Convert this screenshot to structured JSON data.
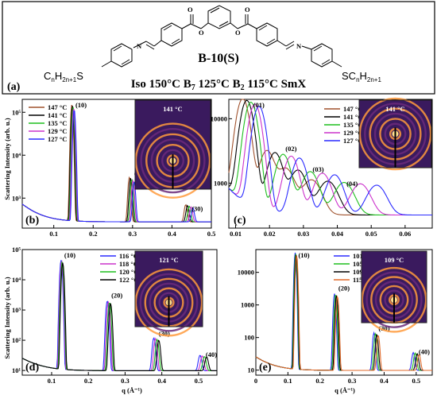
{
  "header": {
    "panel_label": "(a)",
    "compound": "B-10(S)",
    "phase_sequence": {
      "iso": "Iso 150°C B",
      "b7_sub": "7",
      "mid": " 125°C B",
      "b2_sub": "2",
      "tail": " 115°C SmX"
    },
    "chains": {
      "left_main": "C",
      "left_sub1": "n",
      "left_mid": "H",
      "left_sub2": "2n+1",
      "left_end": "S",
      "right_main": "SC",
      "right_sub1": "n",
      "right_mid": "H",
      "right_sub2": "2n+1"
    },
    "atoms": {
      "N": "N",
      "O": "O"
    }
  },
  "shared": {
    "ylabel_top": "Scattering Intensity (arb. u.)",
    "ylabel_bottom": "Scattering Intensity (arb. u.)",
    "xlabel": "q (Å⁻¹)",
    "degree": "°C"
  },
  "chart_data": [
    {
      "panel": "(b)",
      "type": "line",
      "yscale": "log",
      "xlim": [
        0.02,
        0.5
      ],
      "ylim": [
        200,
        200000
      ],
      "xticks": [
        "0.1",
        "0.2",
        "0.3",
        "0.4",
        "0.5"
      ],
      "yticks": [
        "10³",
        "10⁴",
        "10⁵"
      ],
      "legend_loc": "top-left",
      "series": [
        {
          "name": "147 °C",
          "color": "#a0522d"
        },
        {
          "name": "141 °C",
          "color": "#000000"
        },
        {
          "name": "135 °C",
          "color": "#1fbf1f"
        },
        {
          "name": "129 °C",
          "color": "#cc33cc"
        },
        {
          "name": "127 °C",
          "color": "#2b2bff"
        }
      ],
      "peaks": [
        {
          "label": "(10)",
          "q": 0.149,
          "I": 150000
        },
        {
          "label": "(20)",
          "q": 0.298,
          "I": 2800
        },
        {
          "label": "(30)",
          "q": 0.444,
          "I": 420
        }
      ],
      "inset_label": "141 °C"
    },
    {
      "panel": "(c)",
      "type": "line",
      "yscale": "log",
      "xlim": [
        0.008,
        0.068
      ],
      "ylim": [
        200,
        20000
      ],
      "xticks": [
        "0.01",
        "0.02",
        "0.03",
        "0.04",
        "0.05",
        "0.06"
      ],
      "yticks": [
        "1000",
        "10000"
      ],
      "legend_loc": "top-right",
      "series": [
        {
          "name": "147 °C",
          "color": "#a0522d"
        },
        {
          "name": "141 °C",
          "color": "#000000"
        },
        {
          "name": "135 °C",
          "color": "#1fbf1f"
        },
        {
          "name": "129 °C",
          "color": "#cc33cc"
        },
        {
          "name": "127 °C",
          "color": "#2b2bff"
        }
      ],
      "peaks": [
        {
          "label": "(01)",
          "q": 0.0145,
          "I": 20000
        },
        {
          "label": "(02)",
          "q": 0.024,
          "I": 2800
        },
        {
          "label": "(03)",
          "q": 0.032,
          "I": 1350
        },
        {
          "label": "(04)",
          "q": 0.042,
          "I": 800
        }
      ],
      "inset_label": "141 °C"
    },
    {
      "panel": "(d)",
      "type": "line",
      "yscale": "log",
      "xlim": [
        0.02,
        0.55
      ],
      "ylim": [
        7,
        100000
      ],
      "xticks": [
        "0.1",
        "0.2",
        "0.3",
        "0.4",
        "0.5"
      ],
      "yticks": [
        "10¹",
        "10²",
        "10³",
        "10⁴",
        "10⁵"
      ],
      "legend_loc": "top-center",
      "series": [
        {
          "name": "116 °C",
          "color": "#2b2bff"
        },
        {
          "name": "118 °C",
          "color": "#cc33cc"
        },
        {
          "name": "120 °C",
          "color": "#1fbf1f"
        },
        {
          "name": "122 °C",
          "color": "#000000"
        }
      ],
      "peaks": [
        {
          "label": "(10)",
          "q": 0.128,
          "I": 45000
        },
        {
          "label": "(20)",
          "q": 0.256,
          "I": 2000
        },
        {
          "label": "(30)",
          "q": 0.385,
          "I": 110
        },
        {
          "label": "(40)",
          "q": 0.513,
          "I": 22
        }
      ],
      "inset_label": "121 °C"
    },
    {
      "panel": "(e)",
      "type": "line",
      "yscale": "log",
      "xlim": [
        0,
        0.55
      ],
      "ylim": [
        7,
        50000
      ],
      "xticks": [
        "0",
        "0.1",
        "0.2",
        "0.3",
        "0.4",
        "0.5"
      ],
      "yticks": [
        "10",
        "100",
        "1000",
        "10000"
      ],
      "legend_loc": "top-center",
      "series": [
        {
          "name": "101 °C",
          "color": "#2b2bff"
        },
        {
          "name": "105 °C",
          "color": "#1fbf1f"
        },
        {
          "name": "109 °C",
          "color": "#000000"
        },
        {
          "name": "115 °C",
          "color": "#e06a2a"
        }
      ],
      "peaks": [
        {
          "label": "(10)",
          "q": 0.125,
          "I": 40000
        },
        {
          "label": "(20)",
          "q": 0.25,
          "I": 2200
        },
        {
          "label": "(30)",
          "q": 0.375,
          "I": 130
        },
        {
          "label": "(40)",
          "q": 0.5,
          "I": 25
        }
      ],
      "inset_label": "109 °C"
    }
  ]
}
